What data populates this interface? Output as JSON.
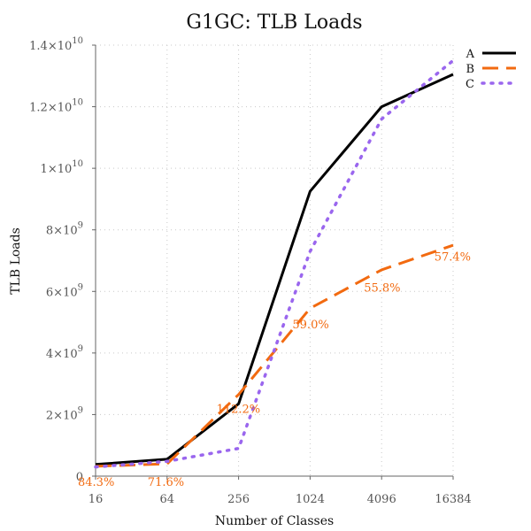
{
  "chart_data": {
    "type": "line",
    "title": "G1GC: TLB Loads",
    "xlabel": "Number of Classes",
    "ylabel": "TLB Loads",
    "x_scale": "log2",
    "categories": [
      "16",
      "64",
      "256",
      "1024",
      "4096",
      "16384"
    ],
    "x": [
      16,
      64,
      256,
      1024,
      4096,
      16384
    ],
    "ylim": [
      0,
      14000000000
    ],
    "yticks": [
      {
        "value": 0,
        "base": "0",
        "exp": ""
      },
      {
        "value": 2000000000,
        "base": "2×10",
        "exp": "9"
      },
      {
        "value": 4000000000,
        "base": "4×10",
        "exp": "9"
      },
      {
        "value": 6000000000,
        "base": "6×10",
        "exp": "9"
      },
      {
        "value": 8000000000,
        "base": "8×10",
        "exp": "9"
      },
      {
        "value": 10000000000,
        "base": "1×10",
        "exp": "10"
      },
      {
        "value": 12000000000,
        "base": "1.2×10",
        "exp": "10"
      },
      {
        "value": 14000000000,
        "base": "1.4×10",
        "exp": "10"
      }
    ],
    "grid": true,
    "legend_position": "top-right",
    "series": [
      {
        "name": "A",
        "color": "#000000",
        "style": "solid",
        "values": [
          380000000,
          550000000,
          2350000000,
          9250000000,
          12000000000,
          13050000000
        ]
      },
      {
        "name": "B",
        "color": "#f26a10",
        "style": "dashed",
        "values": [
          320000000,
          400000000,
          2650000000,
          5450000000,
          6700000000,
          7500000000
        ]
      },
      {
        "name": "C",
        "color": "#9a66ee",
        "style": "dotted",
        "values": [
          300000000,
          480000000,
          900000000,
          7300000000,
          11600000000,
          13500000000
        ]
      }
    ],
    "annotations": [
      {
        "text": "84.3%",
        "x": 16,
        "y": -150000000,
        "color": "#f26a10"
      },
      {
        "text": "71.6%",
        "x": 64,
        "y": -150000000,
        "color": "#f26a10"
      },
      {
        "text": "112.2%",
        "x": 256,
        "y": 2050000000,
        "color": "#f26a10"
      },
      {
        "text": "59.0%",
        "x": 1024,
        "y": 4800000000,
        "color": "#f26a10"
      },
      {
        "text": "55.8%",
        "x": 4096,
        "y": 6000000000,
        "color": "#f26a10"
      },
      {
        "text": "57.4%",
        "x": 16384,
        "y": 7000000000,
        "color": "#f26a10"
      }
    ]
  }
}
